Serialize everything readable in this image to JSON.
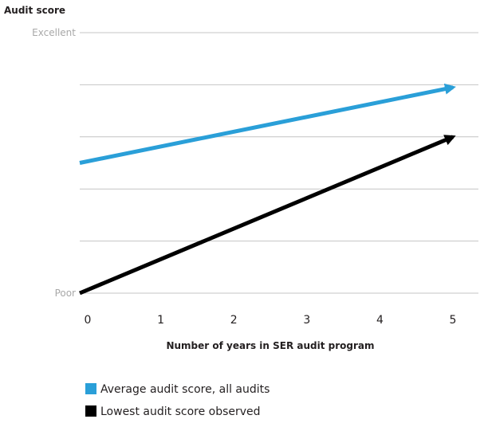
{
  "chart_data": {
    "type": "line",
    "title": "",
    "ylabel": "Audit score",
    "xlabel": "Number of years in SER audit program",
    "x": [
      0,
      1,
      2,
      3,
      4,
      5
    ],
    "x_tick_labels": [
      "0",
      "1",
      "2",
      "3",
      "4",
      "5"
    ],
    "xlim": [
      0,
      5
    ],
    "ylim": [
      0,
      5
    ],
    "y_tick_labels": [
      {
        "value": 0,
        "label": "Poor"
      },
      {
        "value": 5,
        "label": "Excellent"
      }
    ],
    "grid": true,
    "legend_position": "bottom-left",
    "series": [
      {
        "name": "Average audit score, all audits",
        "color": "#2a9fd8",
        "points": [
          [
            0,
            2.5
          ],
          [
            5,
            3.95
          ]
        ]
      },
      {
        "name": "Lowest audit score observed",
        "color": "#000000",
        "points": [
          [
            0,
            0
          ],
          [
            5,
            3
          ]
        ]
      }
    ]
  }
}
